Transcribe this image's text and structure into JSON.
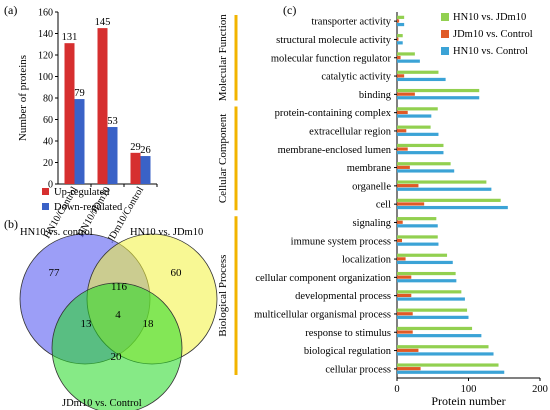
{
  "panel_labels": {
    "a": "(a)",
    "b": "(b)",
    "c": "(c)"
  },
  "chart_data": [
    {
      "panel": "(a)",
      "type": "bar",
      "ylabel": "Number of proteins",
      "ylim": [
        0,
        160
      ],
      "yticks": [
        0,
        20,
        40,
        60,
        80,
        100,
        120,
        140,
        160
      ],
      "categories": [
        "HN10/Control",
        "HN10/JDm10",
        "JDm10/Control"
      ],
      "series": [
        {
          "name": "Up-regulated",
          "color": "#d62f2f",
          "values": [
            131,
            145,
            29
          ]
        },
        {
          "name": "Down-regulated",
          "color": "#3a62c7",
          "values": [
            79,
            53,
            26
          ]
        }
      ],
      "data_labels": true,
      "legend": "bottom",
      "grid": false
    },
    {
      "panel": "(b)",
      "type": "venn",
      "sets": [
        {
          "name": "HN10 vs. control",
          "color": "#4b4ff0"
        },
        {
          "name": "HN10 vs. JDm10",
          "color": "#f2f23c"
        },
        {
          "name": "JDm10 vs. Control",
          "color": "#22d822"
        }
      ],
      "regions": {
        "a_only": 77,
        "b_only": 60,
        "c_only": 20,
        "ab": 116,
        "ac": 13,
        "bc": 18,
        "abc": 4
      }
    },
    {
      "panel": "(c)",
      "type": "bar",
      "orientation": "horizontal",
      "xlabel": "Protein number",
      "xlim": [
        0,
        200
      ],
      "xticks": [
        0,
        100,
        200
      ],
      "groups": [
        {
          "name": "Molecular Function",
          "categories": [
            "transporter activity",
            "structural molecule activity",
            "molecular function regulator",
            "catalytic activity",
            "binding"
          ]
        },
        {
          "name": "Cellular Component",
          "categories": [
            "protein-containing complex",
            "extracellular region",
            "membrane-enclosed lumen",
            "membrane",
            "organelle",
            "cell"
          ]
        },
        {
          "name": "Biological Process",
          "categories": [
            "signaling",
            "immune system process",
            "localization",
            "cellular component organization",
            "developmental process",
            "multicellular organismal process",
            "response to stimulus",
            "biological regulation",
            "cellular process"
          ]
        }
      ],
      "categories": [
        "transporter activity",
        "structural molecule activity",
        "molecular function regulator",
        "catalytic activity",
        "binding",
        "protein-containing complex",
        "extracellular region",
        "membrane-enclosed lumen",
        "membrane",
        "organelle",
        "cell",
        "signaling",
        "immune system process",
        "localization",
        "cellular component organization",
        "developmental process",
        "multicellular organismal process",
        "response to stimulus",
        "biological regulation",
        "cellular process"
      ],
      "series": [
        {
          "name": "HN10 vs. JDm10",
          "color": "#92d050",
          "values": [
            10,
            8,
            25,
            58,
            115,
            57,
            47,
            65,
            75,
            125,
            145,
            55,
            57,
            70,
            82,
            90,
            98,
            105,
            128,
            142
          ]
        },
        {
          "name": "JDm10 vs. Control",
          "color": "#e05a26",
          "values": [
            3,
            2,
            5,
            10,
            25,
            15,
            13,
            15,
            18,
            30,
            38,
            8,
            7,
            12,
            20,
            20,
            22,
            22,
            30,
            33
          ]
        },
        {
          "name": "HN10 vs. Control",
          "color": "#3ba3d6",
          "values": [
            10,
            8,
            32,
            68,
            115,
            48,
            58,
            65,
            80,
            132,
            155,
            57,
            58,
            78,
            83,
            95,
            100,
            118,
            135,
            150
          ]
        }
      ],
      "legend": "top-right",
      "grid": false
    }
  ]
}
